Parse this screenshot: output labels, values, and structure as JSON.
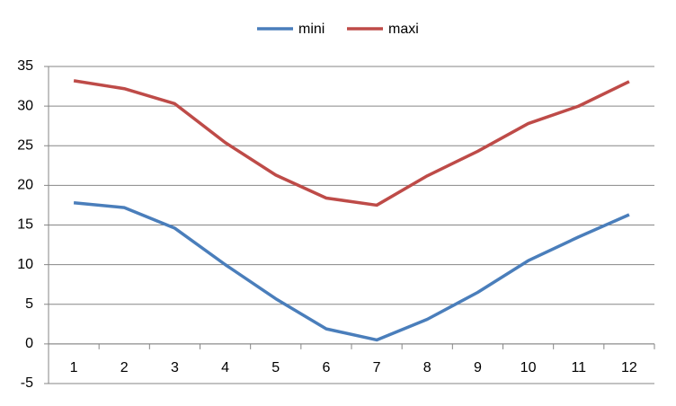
{
  "chart_data": {
    "type": "line",
    "categories": [
      "1",
      "2",
      "3",
      "4",
      "5",
      "6",
      "7",
      "8",
      "9",
      "10",
      "11",
      "12"
    ],
    "series": [
      {
        "name": "mini",
        "color": "#4a7ebb",
        "values": [
          17.8,
          17.2,
          14.6,
          10,
          5.7,
          1.9,
          0.5,
          3.1,
          6.5,
          10.5,
          13.5,
          16.3
        ]
      },
      {
        "name": "maxi",
        "color": "#be4b48",
        "values": [
          33.2,
          32.2,
          30.3,
          25.4,
          21.3,
          18.4,
          17.5,
          21.2,
          24.3,
          27.8,
          30,
          33.1
        ]
      }
    ],
    "ylim": [
      -5,
      35
    ],
    "yticks": [
      -5,
      0,
      5,
      10,
      15,
      20,
      25,
      30,
      35
    ],
    "grid": true,
    "legend": "top"
  }
}
